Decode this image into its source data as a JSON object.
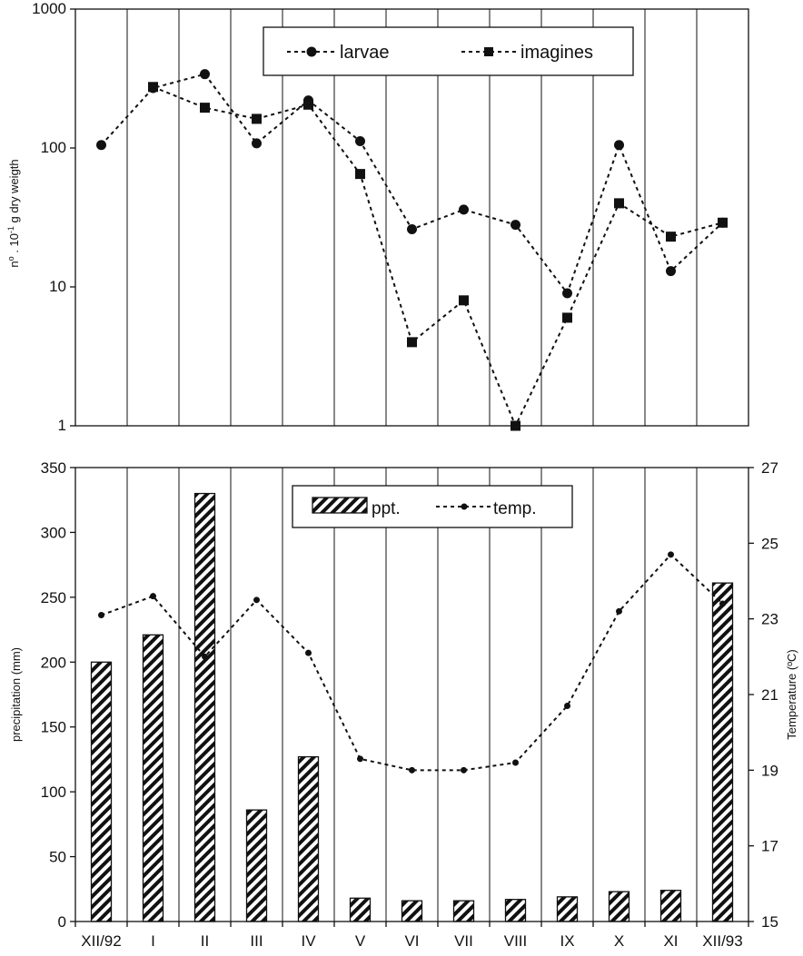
{
  "chart_data": [
    {
      "type": "line",
      "ylabel_main": "n",
      "ylabel_sup1": "o",
      "ylabel_mid": " . 10",
      "ylabel_sup2": "-1",
      "ylabel_tail": " g dry weigth",
      "yscale": "log",
      "ylim": [
        1,
        1000
      ],
      "yticks": [
        "1",
        "10",
        "100",
        "1000"
      ],
      "categories": [
        "XII/92",
        "I",
        "II",
        "III",
        "IV",
        "V",
        "VI",
        "VII",
        "VIII",
        "IX",
        "X",
        "XI",
        "XII/93"
      ],
      "grid": "vertical",
      "legend_position": "top-center",
      "series": [
        {
          "name": "larvae",
          "marker": "circle",
          "values": [
            105,
            270,
            340,
            108,
            220,
            112,
            26,
            36,
            28,
            9,
            105,
            13,
            29
          ]
        },
        {
          "name": "imagines",
          "marker": "square",
          "values": [
            null,
            275,
            195,
            162,
            205,
            65,
            4,
            8,
            1,
            6,
            40,
            23,
            29
          ]
        }
      ]
    },
    {
      "type": "bar",
      "ylabel": "precipitation (mm)",
      "ylabel_right": "Temperature (ºC)",
      "ylim": [
        0,
        350
      ],
      "ylim_right": [
        15,
        27
      ],
      "yticks": [
        "0",
        "50",
        "100",
        "150",
        "200",
        "250",
        "300",
        "350"
      ],
      "yticks_right": [
        "15",
        "17",
        "19",
        "21",
        "23",
        "25",
        "27"
      ],
      "categories": [
        "XII/92",
        "I",
        "II",
        "III",
        "IV",
        "V",
        "VI",
        "VII",
        "VIII",
        "IX",
        "X",
        "XI",
        "XII/93"
      ],
      "grid": "vertical",
      "legend_position": "top-center",
      "series": [
        {
          "name": "ppt.",
          "type": "bar",
          "axis": "left",
          "values": [
            200,
            221,
            330,
            86,
            127,
            18,
            16,
            16,
            17,
            19,
            23,
            24,
            261
          ]
        },
        {
          "name": "temp.",
          "type": "line",
          "axis": "right",
          "values": [
            23.1,
            23.6,
            22.0,
            23.5,
            22.1,
            19.3,
            19.0,
            19.0,
            19.2,
            20.7,
            23.2,
            24.7,
            23.4
          ]
        }
      ]
    }
  ]
}
